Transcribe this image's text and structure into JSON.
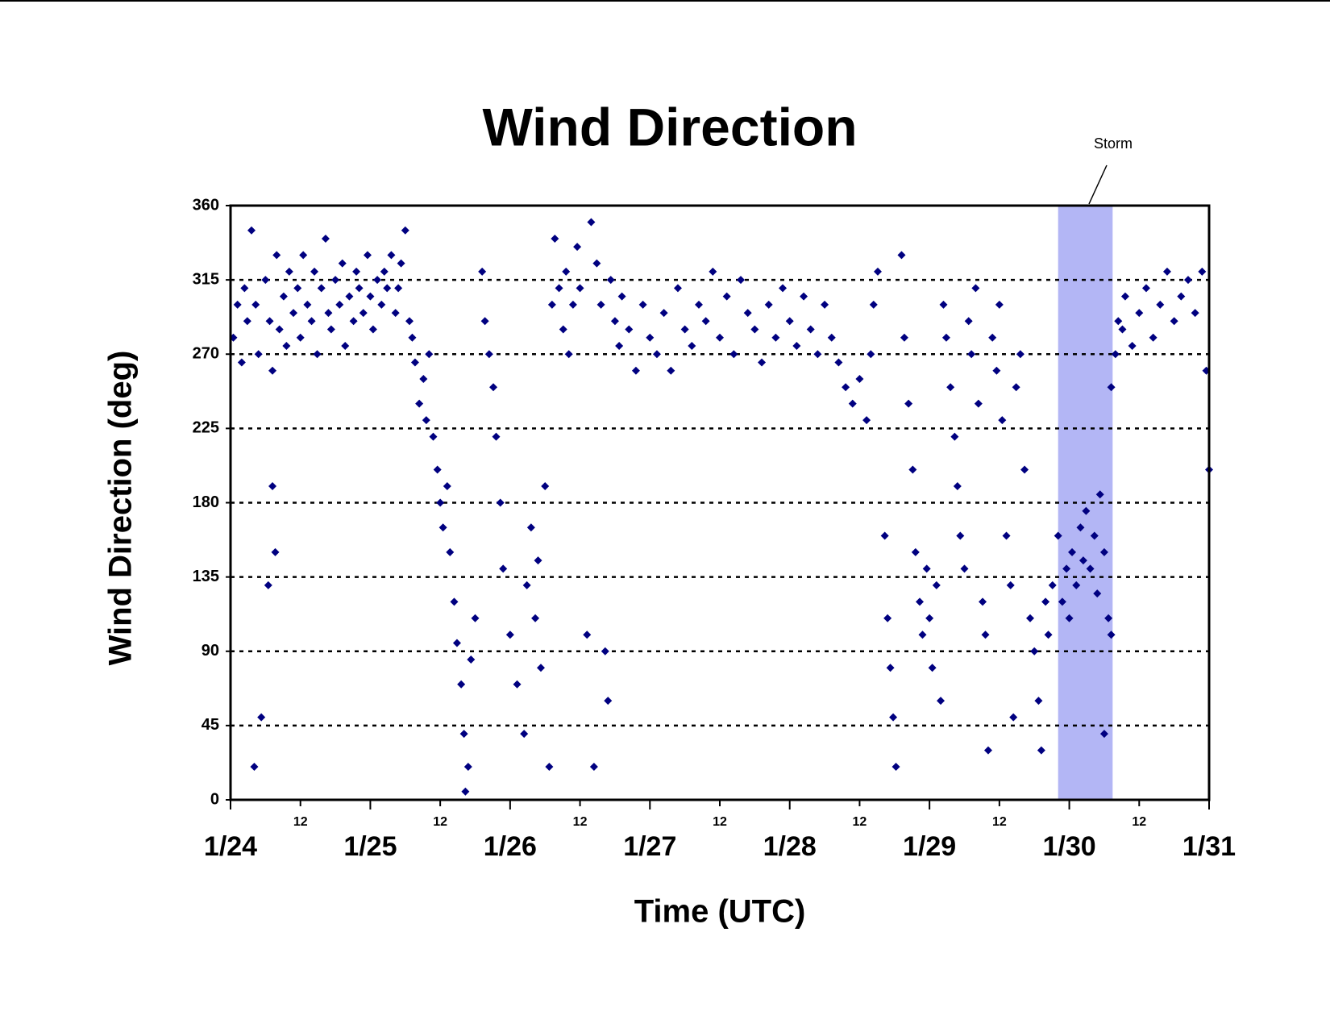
{
  "chart_data": {
    "type": "scatter",
    "title": "Wind Direction",
    "x_label": "Time (UTC)",
    "y_label": "Wind Direction (deg)",
    "color": "#000080",
    "marker": "diamond",
    "grid": true,
    "grid_style": "dotted",
    "xlim": [
      0,
      7
    ],
    "ylim": [
      0,
      360
    ],
    "xticks": [
      {
        "value": 0,
        "label": "1/24"
      },
      {
        "value": 1,
        "label": "1/25"
      },
      {
        "value": 2,
        "label": "1/26"
      },
      {
        "value": 3,
        "label": "1/27"
      },
      {
        "value": 4,
        "label": "1/28"
      },
      {
        "value": 5,
        "label": "1/29"
      },
      {
        "value": 6,
        "label": "1/30"
      },
      {
        "value": 7,
        "label": "1/31"
      }
    ],
    "xminorticks": [
      {
        "value": 0.5,
        "label": "12"
      },
      {
        "value": 1.5,
        "label": "12"
      },
      {
        "value": 2.5,
        "label": "12"
      },
      {
        "value": 3.5,
        "label": "12"
      },
      {
        "value": 4.5,
        "label": "12"
      },
      {
        "value": 5.5,
        "label": "12"
      },
      {
        "value": 6.5,
        "label": "12"
      }
    ],
    "yticks": [
      0,
      45,
      90,
      135,
      180,
      225,
      270,
      315,
      360
    ],
    "highlight": {
      "label": "Storm",
      "xrange": [
        5.92,
        6.31
      ],
      "color": "#b3b6f5"
    },
    "x": [
      0.02,
      0.05,
      0.08,
      0.1,
      0.12,
      0.15,
      0.17,
      0.18,
      0.2,
      0.22,
      0.25,
      0.27,
      0.28,
      0.3,
      0.32,
      0.33,
      0.35,
      0.3,
      0.38,
      0.4,
      0.42,
      0.45,
      0.48,
      0.5,
      0.52,
      0.55,
      0.58,
      0.6,
      0.62,
      0.65,
      0.68,
      0.7,
      0.72,
      0.75,
      0.78,
      0.8,
      0.82,
      0.85,
      0.88,
      0.9,
      0.92,
      0.95,
      0.98,
      1.0,
      1.02,
      1.05,
      1.08,
      1.1,
      1.12,
      1.15,
      1.18,
      1.2,
      1.22,
      1.25,
      1.28,
      1.3,
      1.32,
      1.35,
      1.38,
      1.4,
      1.42,
      1.45,
      1.48,
      1.5,
      1.52,
      1.55,
      1.57,
      1.6,
      1.62,
      1.65,
      1.67,
      1.7,
      1.72,
      1.75,
      1.68,
      1.8,
      1.82,
      1.85,
      1.88,
      1.9,
      1.93,
      1.95,
      2.0,
      2.05,
      2.1,
      2.12,
      2.15,
      2.18,
      2.2,
      2.22,
      2.25,
      2.28,
      2.3,
      2.32,
      2.35,
      2.38,
      2.4,
      2.42,
      2.45,
      2.48,
      2.5,
      2.55,
      2.58,
      2.6,
      2.62,
      2.65,
      2.68,
      2.7,
      2.72,
      2.75,
      2.78,
      2.8,
      2.85,
      2.9,
      2.95,
      3.0,
      3.05,
      3.1,
      3.15,
      3.2,
      3.25,
      3.3,
      3.35,
      3.4,
      3.45,
      3.5,
      3.55,
      3.6,
      3.65,
      3.7,
      3.75,
      3.8,
      3.85,
      3.9,
      3.95,
      4.0,
      4.05,
      4.1,
      4.15,
      4.2,
      4.25,
      4.3,
      4.35,
      4.4,
      4.45,
      4.5,
      4.55,
      4.58,
      4.6,
      4.63,
      4.68,
      4.7,
      4.72,
      4.74,
      4.76,
      4.8,
      4.82,
      4.85,
      4.88,
      4.9,
      4.93,
      4.95,
      4.98,
      5.0,
      5.02,
      5.05,
      5.08,
      5.1,
      5.12,
      5.15,
      5.18,
      5.2,
      5.22,
      5.25,
      5.28,
      5.3,
      5.33,
      5.35,
      5.38,
      5.4,
      5.42,
      5.45,
      5.48,
      5.5,
      5.52,
      5.55,
      5.58,
      5.6,
      5.62,
      5.65,
      5.68,
      5.72,
      5.75,
      5.78,
      5.8,
      5.83,
      5.85,
      5.88,
      5.92,
      5.95,
      5.98,
      6.0,
      6.02,
      6.05,
      6.08,
      6.1,
      6.12,
      6.15,
      6.18,
      6.2,
      6.22,
      6.25,
      6.28,
      6.3,
      6.25,
      6.3,
      6.33,
      6.35,
      6.38,
      6.4,
      6.45,
      6.5,
      6.55,
      6.6,
      6.65,
      6.7,
      6.75,
      6.8,
      6.85,
      6.9,
      6.95,
      6.98,
      7.0
    ],
    "values": [
      280,
      300,
      265,
      310,
      290,
      345,
      20,
      300,
      270,
      50,
      315,
      130,
      290,
      260,
      150,
      330,
      285,
      190,
      305,
      275,
      320,
      295,
      310,
      280,
      330,
      300,
      290,
      320,
      270,
      310,
      340,
      295,
      285,
      315,
      300,
      325,
      275,
      305,
      290,
      320,
      310,
      295,
      330,
      305,
      285,
      315,
      300,
      320,
      310,
      330,
      295,
      310,
      325,
      345,
      290,
      280,
      265,
      240,
      255,
      230,
      270,
      220,
      200,
      180,
      165,
      190,
      150,
      120,
      95,
      70,
      40,
      20,
      85,
      110,
      5,
      320,
      290,
      270,
      250,
      220,
      180,
      140,
      100,
      70,
      40,
      130,
      165,
      110,
      145,
      80,
      190,
      20,
      300,
      340,
      310,
      285,
      320,
      270,
      300,
      335,
      310,
      100,
      350,
      20,
      325,
      300,
      90,
      60,
      315,
      290,
      275,
      305,
      285,
      260,
      300,
      280,
      270,
      295,
      260,
      310,
      285,
      275,
      300,
      290,
      320,
      280,
      305,
      270,
      315,
      295,
      285,
      265,
      300,
      280,
      310,
      290,
      275,
      305,
      285,
      270,
      300,
      280,
      265,
      250,
      240,
      255,
      230,
      270,
      300,
      320,
      160,
      110,
      80,
      50,
      20,
      330,
      280,
      240,
      200,
      150,
      120,
      100,
      140,
      110,
      80,
      130,
      60,
      300,
      280,
      250,
      220,
      190,
      160,
      140,
      290,
      270,
      310,
      240,
      120,
      100,
      30,
      280,
      260,
      300,
      230,
      160,
      130,
      50,
      250,
      270,
      200,
      110,
      90,
      60,
      30,
      120,
      100,
      130,
      160,
      120,
      140,
      110,
      150,
      130,
      165,
      145,
      175,
      140,
      160,
      125,
      185,
      150,
      110,
      100,
      40,
      250,
      270,
      290,
      285,
      305,
      275,
      295,
      310,
      280,
      300,
      320,
      290,
      305,
      315,
      295,
      320,
      260,
      200
    ]
  }
}
